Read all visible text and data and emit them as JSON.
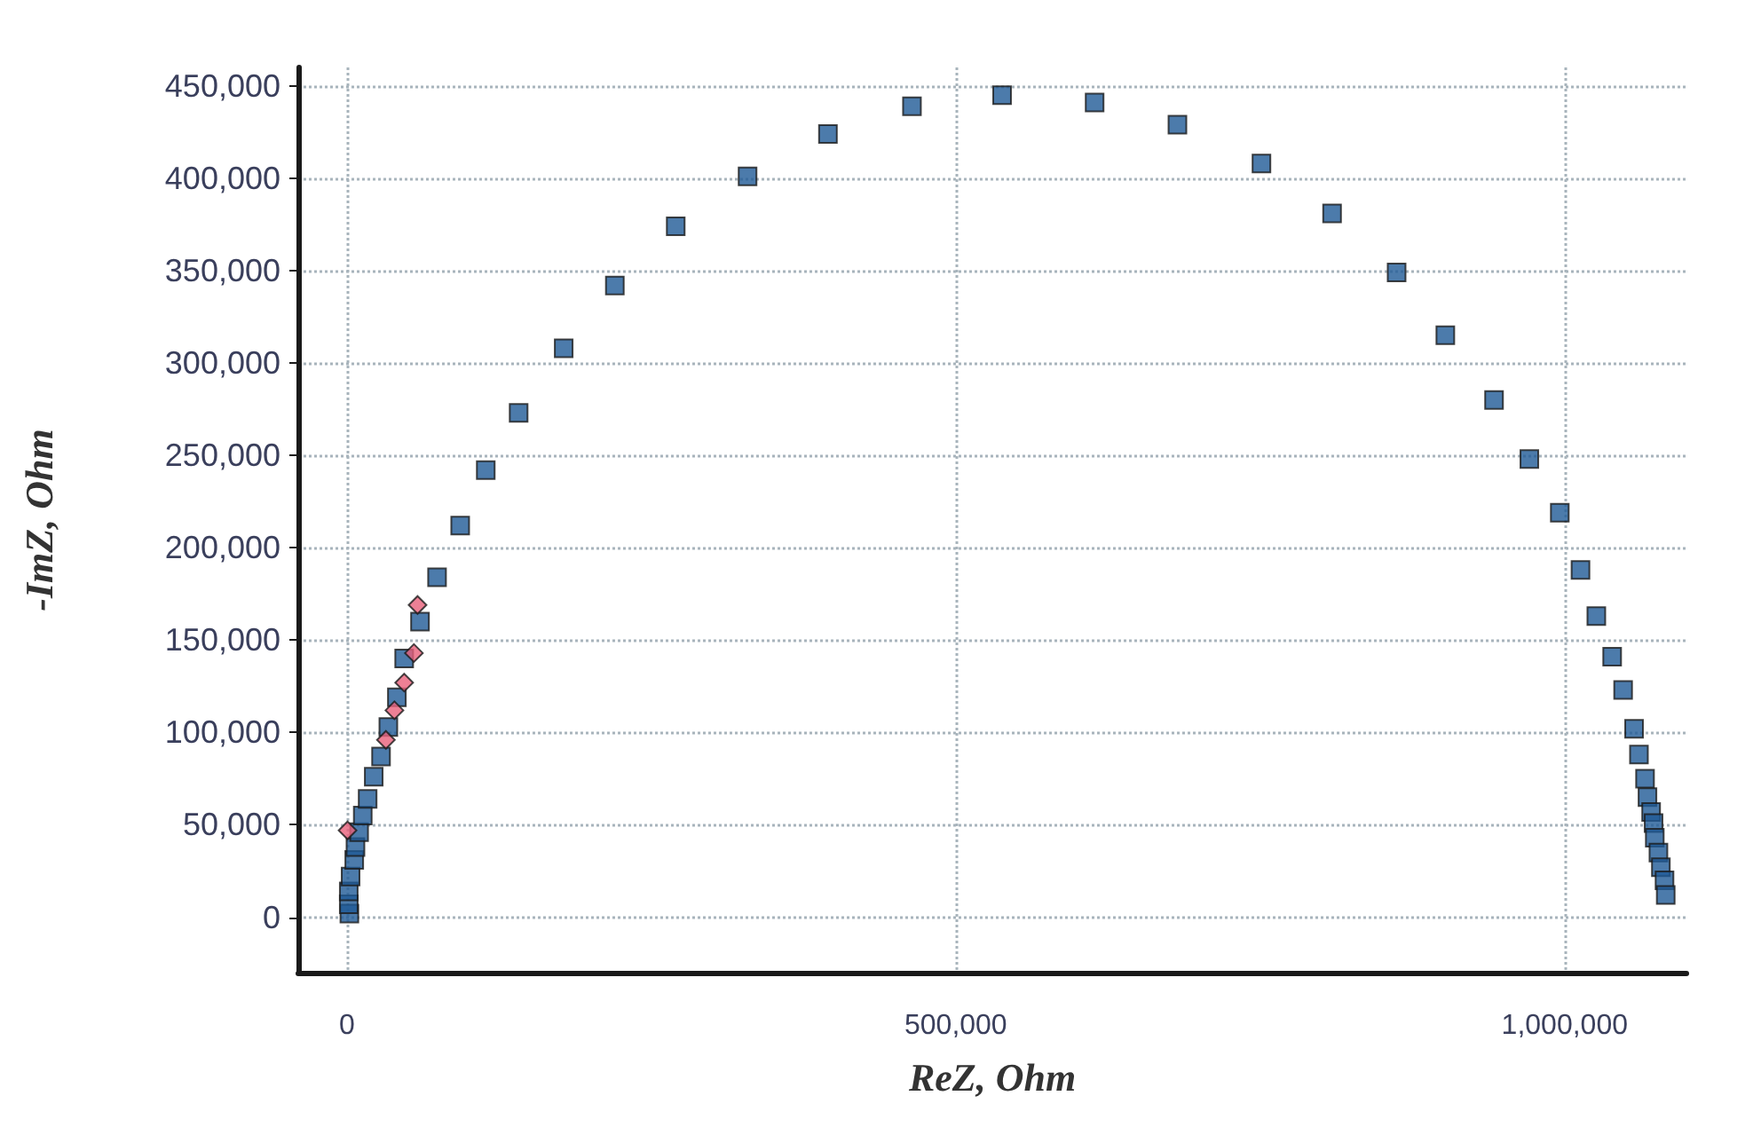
{
  "chart_data": {
    "type": "scatter",
    "xlabel": "ReZ, Ohm",
    "ylabel": "-ImZ, Ohm",
    "xlim": [
      -40000,
      1100000
    ],
    "ylim": [
      -30000,
      460000
    ],
    "xticks": [
      {
        "value": 0,
        "label": "0"
      },
      {
        "value": 500000,
        "label": "500,000"
      },
      {
        "value": 1000000,
        "label": "1,000,000"
      }
    ],
    "yticks": [
      {
        "value": 0,
        "label": "0"
      },
      {
        "value": 50000,
        "label": "50,000"
      },
      {
        "value": 100000,
        "label": "100,000"
      },
      {
        "value": 150000,
        "label": "150,000"
      },
      {
        "value": 200000,
        "label": "200,000"
      },
      {
        "value": 250000,
        "label": "250,000"
      },
      {
        "value": 300000,
        "label": "300,000"
      },
      {
        "value": 350000,
        "label": "350,000"
      },
      {
        "value": 400000,
        "label": "400,000"
      },
      {
        "value": 450000,
        "label": "450,000"
      }
    ],
    "grid": true,
    "marker": "square",
    "series": [
      {
        "color": "#1f5a96",
        "x": [
          2000,
          1500,
          1500,
          3000,
          6000,
          7000,
          10000,
          13000,
          17000,
          22000,
          28000,
          34000,
          41000,
          47000,
          60000,
          74000,
          93000,
          114000,
          141000,
          178000,
          220000,
          270000,
          329000,
          395000,
          464000,
          538000,
          614000,
          682000,
          751000,
          809000,
          862000,
          902000,
          942000,
          971000,
          996000,
          1013000,
          1026000,
          1039000,
          1048000,
          1057000,
          1061000,
          1066000,
          1068000,
          1071000,
          1073000,
          1074000,
          1077000,
          1079000,
          1082000,
          1083000
        ],
        "values": [
          2000,
          7000,
          14000,
          22000,
          31000,
          38000,
          46000,
          55000,
          64000,
          76000,
          87000,
          103000,
          119000,
          140000,
          160000,
          184000,
          212000,
          242000,
          273000,
          308000,
          342000,
          374000,
          401000,
          424000,
          439000,
          445000,
          441000,
          429000,
          408000,
          381000,
          349000,
          315000,
          280000,
          248000,
          219000,
          188000,
          163000,
          141000,
          123000,
          102000,
          88000,
          75000,
          65000,
          57000,
          51000,
          43000,
          35000,
          27000,
          20000,
          12000
        ]
      },
      {
        "color": "#e8607a",
        "marker": "diamond",
        "x": [
          500,
          32000,
          39000,
          47000,
          55000,
          58000
        ],
        "values": [
          47000,
          96000,
          112000,
          127000,
          143000,
          169000
        ]
      }
    ]
  }
}
